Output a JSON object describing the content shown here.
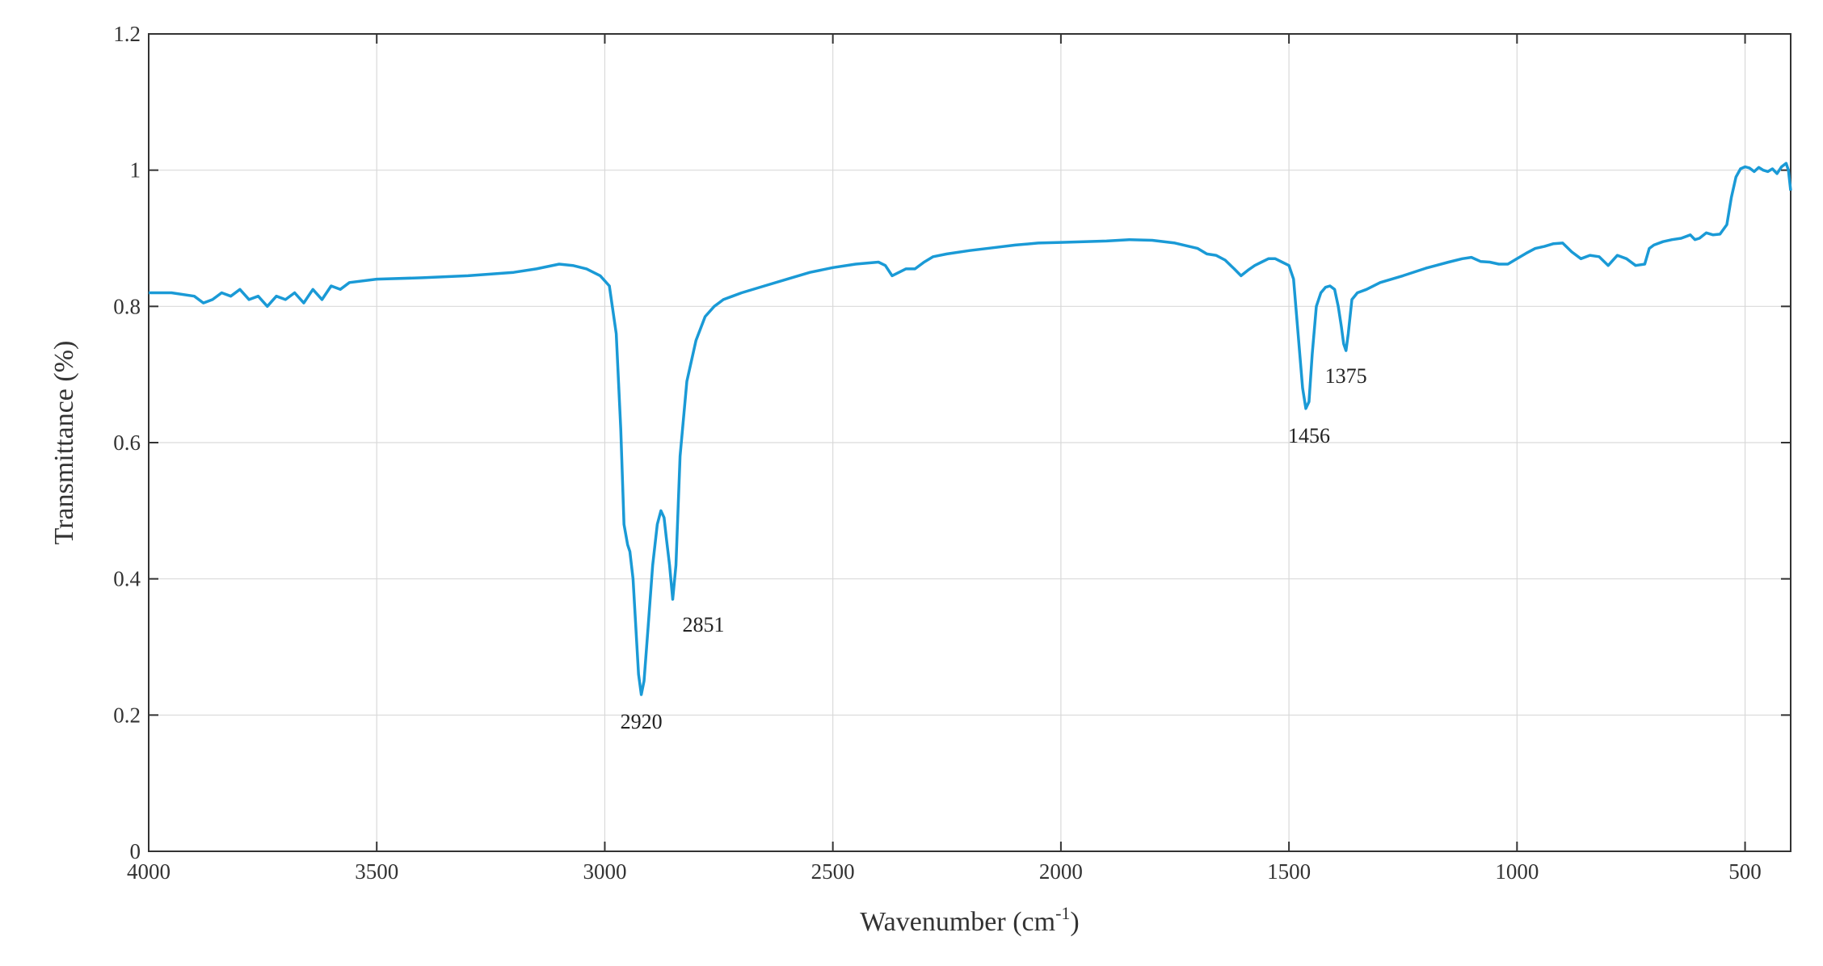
{
  "chart_data": {
    "type": "line",
    "xlabel": "Wavenumber (cm",
    "xlabel_exponent": "-1",
    "xlabel_suffix": ")",
    "ylabel": "Transmittance (%)",
    "xlim": [
      4000,
      400
    ],
    "ylim": [
      0,
      1.2
    ],
    "x_reversed": true,
    "grid": true,
    "x_ticks": [
      4000,
      3500,
      3000,
      2500,
      2000,
      1500,
      1000,
      500
    ],
    "y_ticks": [
      0,
      0.2,
      0.4,
      0.6,
      0.8,
      1,
      1.2
    ],
    "y_tick_labels": [
      "0",
      "0.2",
      "0.4",
      "0.6",
      "0.8",
      "1",
      "1.2"
    ],
    "line_color": "#1a9ad6",
    "series": [
      {
        "x": [
          4000,
          3950,
          3900,
          3880,
          3860,
          3840,
          3820,
          3800,
          3780,
          3760,
          3740,
          3720,
          3700,
          3680,
          3660,
          3640,
          3620,
          3600,
          3580,
          3560,
          3500,
          3400,
          3300,
          3200,
          3150,
          3100,
          3070,
          3040,
          3010,
          2990,
          2975,
          2965,
          2958,
          2950,
          2945,
          2938,
          2932,
          2926,
          2920,
          2914,
          2905,
          2895,
          2885,
          2877,
          2870,
          2865,
          2858,
          2851,
          2844,
          2835,
          2820,
          2800,
          2780,
          2760,
          2740,
          2720,
          2700,
          2650,
          2600,
          2550,
          2500,
          2450,
          2400,
          2385,
          2370,
          2355,
          2340,
          2320,
          2300,
          2280,
          2250,
          2200,
          2150,
          2100,
          2050,
          2000,
          1950,
          1900,
          1850,
          1800,
          1750,
          1700,
          1680,
          1660,
          1640,
          1620,
          1605,
          1590,
          1575,
          1560,
          1545,
          1530,
          1515,
          1500,
          1490,
          1480,
          1470,
          1463,
          1456,
          1449,
          1440,
          1430,
          1420,
          1410,
          1400,
          1392,
          1385,
          1380,
          1375,
          1370,
          1362,
          1350,
          1330,
          1300,
          1250,
          1200,
          1150,
          1120,
          1100,
          1080,
          1060,
          1040,
          1020,
          1000,
          980,
          960,
          940,
          920,
          900,
          880,
          860,
          840,
          820,
          800,
          780,
          760,
          740,
          720,
          710,
          700,
          680,
          660,
          640,
          620,
          610,
          600,
          585,
          570,
          555,
          540,
          530,
          520,
          510,
          500,
          490,
          480,
          470,
          460,
          450,
          440,
          430,
          420,
          410,
          405,
          400
        ],
        "y": [
          0.82,
          0.82,
          0.815,
          0.805,
          0.81,
          0.82,
          0.815,
          0.825,
          0.81,
          0.815,
          0.8,
          0.815,
          0.81,
          0.82,
          0.805,
          0.825,
          0.81,
          0.83,
          0.825,
          0.835,
          0.84,
          0.842,
          0.845,
          0.85,
          0.855,
          0.862,
          0.86,
          0.855,
          0.845,
          0.83,
          0.76,
          0.62,
          0.48,
          0.45,
          0.44,
          0.4,
          0.33,
          0.26,
          0.23,
          0.25,
          0.33,
          0.42,
          0.48,
          0.5,
          0.49,
          0.46,
          0.42,
          0.37,
          0.42,
          0.58,
          0.69,
          0.75,
          0.785,
          0.8,
          0.81,
          0.815,
          0.82,
          0.83,
          0.84,
          0.85,
          0.857,
          0.862,
          0.865,
          0.86,
          0.845,
          0.85,
          0.855,
          0.855,
          0.865,
          0.873,
          0.877,
          0.882,
          0.886,
          0.89,
          0.893,
          0.894,
          0.895,
          0.896,
          0.898,
          0.897,
          0.893,
          0.885,
          0.877,
          0.875,
          0.868,
          0.855,
          0.845,
          0.853,
          0.86,
          0.865,
          0.87,
          0.87,
          0.865,
          0.86,
          0.84,
          0.76,
          0.68,
          0.65,
          0.66,
          0.73,
          0.8,
          0.82,
          0.828,
          0.83,
          0.825,
          0.8,
          0.77,
          0.745,
          0.735,
          0.76,
          0.81,
          0.82,
          0.825,
          0.835,
          0.845,
          0.856,
          0.865,
          0.87,
          0.872,
          0.866,
          0.865,
          0.862,
          0.862,
          0.87,
          0.878,
          0.885,
          0.888,
          0.892,
          0.893,
          0.88,
          0.87,
          0.875,
          0.873,
          0.86,
          0.875,
          0.87,
          0.86,
          0.862,
          0.885,
          0.89,
          0.895,
          0.898,
          0.9,
          0.905,
          0.898,
          0.9,
          0.908,
          0.905,
          0.906,
          0.92,
          0.96,
          0.99,
          1.002,
          1.005,
          1.003,
          0.998,
          1.004,
          1.0,
          0.998,
          1.002,
          0.995,
          1.005,
          1.01,
          1.0,
          0.97
        ]
      }
    ],
    "annotations": [
      {
        "text": "2920",
        "x": 2920,
        "y": 0.23,
        "anchor": "below"
      },
      {
        "text": "2851",
        "x": 2851,
        "y": 0.37,
        "anchor": "below-right"
      },
      {
        "text": "1456",
        "x": 1456,
        "y": 0.65,
        "anchor": "below"
      },
      {
        "text": "1375",
        "x": 1375,
        "y": 0.735,
        "anchor": "below"
      }
    ]
  }
}
